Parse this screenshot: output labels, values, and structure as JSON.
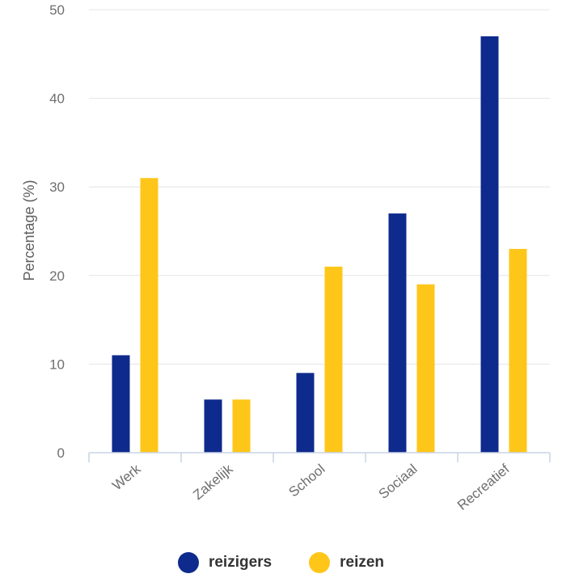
{
  "chart_data": {
    "type": "bar",
    "categories": [
      "Werk",
      "Zakelijk",
      "School",
      "Sociaal",
      "Recreatief"
    ],
    "series": [
      {
        "name": "reizigers",
        "values": [
          11,
          6,
          9,
          27,
          47
        ]
      },
      {
        "name": "reizen",
        "values": [
          31,
          6,
          21,
          19,
          23
        ]
      }
    ],
    "ylabel": "Percentage (%)",
    "xlabel": "",
    "ylim": [
      0,
      50
    ],
    "yticks": [
      0,
      10,
      20,
      30,
      40,
      50
    ],
    "grid": true,
    "legend_position": "bottom-center",
    "colors": {
      "reizigers": "#0e2a8c",
      "reizen": "#ffc61a"
    }
  },
  "legend": {
    "items": [
      {
        "label": "reizigers",
        "color": "#0e2a8c"
      },
      {
        "label": "reizen",
        "color": "#ffc61a"
      }
    ]
  }
}
